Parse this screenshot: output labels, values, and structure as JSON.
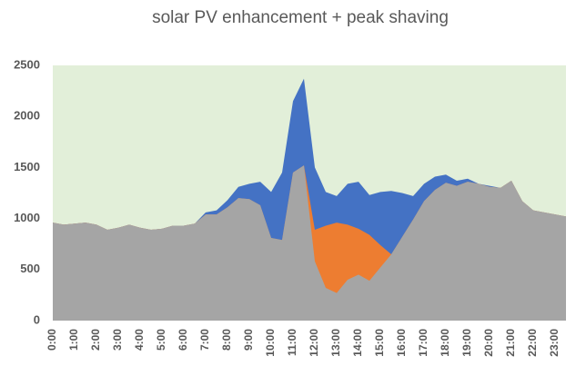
{
  "chart_data": {
    "type": "area",
    "title": "solar PV enhancement + peak shaving",
    "categories": [
      "0:00",
      null,
      "1:00",
      null,
      "2:00",
      null,
      "3:00",
      null,
      "4:00",
      null,
      "5:00",
      null,
      "6:00",
      null,
      "7:00",
      null,
      "8:00",
      null,
      "9:00",
      null,
      "10:00",
      null,
      "11:00",
      null,
      "12:00",
      null,
      "13:00",
      null,
      "14:00",
      null,
      "15:00",
      null,
      "16:00",
      null,
      "17:00",
      null,
      "18:00",
      null,
      "19:00",
      null,
      "20:00",
      null,
      "21:00",
      null,
      "22:00",
      null,
      "23:00",
      null
    ],
    "series": [
      {
        "color": "#4472c4",
        "values": [
          960,
          940,
          950,
          960,
          940,
          890,
          910,
          940,
          910,
          890,
          900,
          930,
          930,
          950,
          1060,
          1080,
          1180,
          1310,
          1340,
          1360,
          1260,
          1450,
          2150,
          2370,
          1500,
          1260,
          1220,
          1340,
          1360,
          1230,
          1260,
          1270,
          1250,
          1220,
          1340,
          1410,
          1430,
          1370,
          1390,
          1340,
          1320,
          1300,
          1370,
          1170,
          1080,
          1060,
          1040,
          1020
        ]
      },
      {
        "color": "#ed7d31",
        "values": [
          960,
          940,
          950,
          960,
          940,
          890,
          910,
          940,
          910,
          890,
          900,
          930,
          930,
          950,
          1040,
          1040,
          1110,
          1200,
          1190,
          1130,
          810,
          790,
          1450,
          1520,
          890,
          930,
          960,
          940,
          900,
          840,
          740,
          650,
          820,
          990,
          1170,
          1280,
          1350,
          1320,
          1360,
          1340,
          1310,
          1300,
          1370,
          1170,
          1080,
          1060,
          1040,
          1020
        ]
      },
      {
        "color": "#a5a5a5",
        "values": [
          960,
          940,
          950,
          960,
          940,
          890,
          910,
          940,
          910,
          890,
          900,
          930,
          930,
          950,
          1040,
          1040,
          1110,
          1200,
          1190,
          1130,
          810,
          790,
          1450,
          1520,
          580,
          320,
          270,
          400,
          450,
          390,
          520,
          650,
          820,
          990,
          1170,
          1280,
          1350,
          1320,
          1360,
          1340,
          1310,
          1300,
          1370,
          1170,
          1080,
          1060,
          1040,
          1020
        ]
      }
    ],
    "ylim": [
      0,
      2500
    ],
    "yticks": [
      0,
      500,
      1000,
      1500,
      2000,
      2500
    ],
    "plot_background": "#e2efd9"
  }
}
